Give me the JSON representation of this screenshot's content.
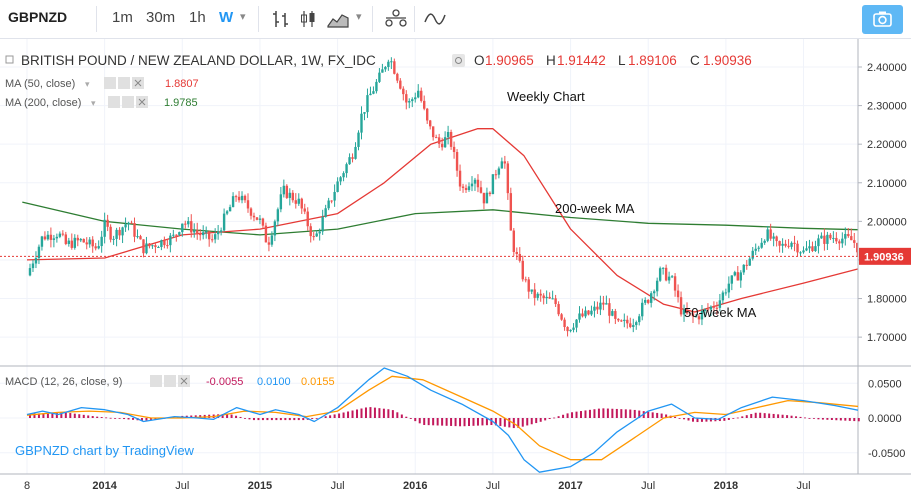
{
  "toolbar": {
    "symbol": "GBPNZD",
    "intervals": [
      "1m",
      "30m",
      "1h",
      "W"
    ],
    "active_interval": "W",
    "icons": [
      "bar-style-icon",
      "candle-style-icon",
      "area-style-icon",
      "chevron-down-icon",
      "compare-icon",
      "indicators-icon",
      "camera-icon"
    ]
  },
  "legend": {
    "title": "BRITISH POUND / NEW ZEALAND DOLLAR, 1W, FX_IDC",
    "o_label": "O",
    "o_value": "1.90965",
    "h_label": "H",
    "h_value": "1.91442",
    "l_label": "L",
    "l_value": "1.89106",
    "c_label": "C",
    "c_value": "1.90936",
    "ma50_label": "MA (50, close)",
    "ma50_value": "1.8807",
    "ma200_label": "MA (200, close)",
    "ma200_value": "1.9785",
    "macd_label": "MACD (12, 26, close, 9)",
    "macd_values": [
      "-0.0055",
      "0.0100",
      "0.0155"
    ]
  },
  "annotations": {
    "weekly": "Weekly Chart",
    "ma200": "200-week MA",
    "ma50": "50-week MA",
    "credit": "GBPNZD chart by TradingView"
  },
  "colors": {
    "up": "#26a69a",
    "down": "#ef5350",
    "ma50": "#e53935",
    "ma200": "#2e7d32",
    "macd": "#2196f3",
    "signal": "#ff9800",
    "hist": "#c2185b",
    "price_tag": "#e53935"
  },
  "chart_data": [
    {
      "type": "candlestick",
      "x_tick_labels": [
        "8",
        "2014",
        "Jul",
        "2015",
        "Jul",
        "2016",
        "Jul",
        "2017",
        "Jul",
        "2018",
        "Jul"
      ],
      "y_tick_labels": [
        "2.40000",
        "2.30000",
        "2.20000",
        "2.10000",
        "2.00000",
        "1.90000",
        "1.80000",
        "1.70000"
      ],
      "ylim": [
        1.63,
        2.46
      ],
      "last_price": "1.90936",
      "close_path": [
        {
          "t": 0.0,
          "v": 1.86
        },
        {
          "t": 0.1,
          "v": 1.96
        },
        {
          "t": 0.2,
          "v": 1.97
        },
        {
          "t": 0.25,
          "v": 1.94
        },
        {
          "t": 0.35,
          "v": 1.95
        },
        {
          "t": 0.45,
          "v": 1.93
        },
        {
          "t": 0.5,
          "v": 1.99
        },
        {
          "t": 0.55,
          "v": 1.96
        },
        {
          "t": 0.65,
          "v": 2.0
        },
        {
          "t": 0.75,
          "v": 1.93
        },
        {
          "t": 0.95,
          "v": 1.96
        },
        {
          "t": 1.0,
          "v": 2.0
        },
        {
          "t": 1.1,
          "v": 1.97
        },
        {
          "t": 1.2,
          "v": 1.95
        },
        {
          "t": 1.35,
          "v": 2.07
        },
        {
          "t": 1.5,
          "v": 2.0
        },
        {
          "t": 1.55,
          "v": 1.94
        },
        {
          "t": 1.65,
          "v": 2.08
        },
        {
          "t": 1.75,
          "v": 2.05
        },
        {
          "t": 1.85,
          "v": 1.95
        },
        {
          "t": 1.95,
          "v": 2.05
        },
        {
          "t": 2.0,
          "v": 2.1
        },
        {
          "t": 2.1,
          "v": 2.18
        },
        {
          "t": 2.15,
          "v": 2.27
        },
        {
          "t": 2.2,
          "v": 2.32
        },
        {
          "t": 2.28,
          "v": 2.38
        },
        {
          "t": 2.33,
          "v": 2.43
        },
        {
          "t": 2.4,
          "v": 2.36
        },
        {
          "t": 2.45,
          "v": 2.3
        },
        {
          "t": 2.52,
          "v": 2.34
        },
        {
          "t": 2.58,
          "v": 2.25
        },
        {
          "t": 2.65,
          "v": 2.2
        },
        {
          "t": 2.72,
          "v": 2.22
        },
        {
          "t": 2.8,
          "v": 2.08
        },
        {
          "t": 2.88,
          "v": 2.12
        },
        {
          "t": 2.95,
          "v": 2.05
        },
        {
          "t": 3.02,
          "v": 2.13
        },
        {
          "t": 3.07,
          "v": 2.18
        },
        {
          "t": 3.12,
          "v": 1.95
        },
        {
          "t": 3.2,
          "v": 1.85
        },
        {
          "t": 3.25,
          "v": 1.81
        },
        {
          "t": 3.32,
          "v": 1.8
        },
        {
          "t": 3.4,
          "v": 1.79
        },
        {
          "t": 3.48,
          "v": 1.72
        },
        {
          "t": 3.55,
          "v": 1.75
        },
        {
          "t": 3.62,
          "v": 1.76
        },
        {
          "t": 3.72,
          "v": 1.79
        },
        {
          "t": 3.8,
          "v": 1.73
        },
        {
          "t": 3.9,
          "v": 1.74
        },
        {
          "t": 4.0,
          "v": 1.8
        },
        {
          "t": 4.08,
          "v": 1.87
        },
        {
          "t": 4.15,
          "v": 1.85
        },
        {
          "t": 4.22,
          "v": 1.76
        },
        {
          "t": 4.3,
          "v": 1.75
        },
        {
          "t": 4.38,
          "v": 1.77
        },
        {
          "t": 4.45,
          "v": 1.79
        },
        {
          "t": 4.52,
          "v": 1.84
        },
        {
          "t": 4.6,
          "v": 1.87
        },
        {
          "t": 4.68,
          "v": 1.92
        },
        {
          "t": 4.76,
          "v": 1.97
        },
        {
          "t": 4.84,
          "v": 1.93
        },
        {
          "t": 4.92,
          "v": 1.95
        },
        {
          "t": 5.0,
          "v": 1.92
        },
        {
          "t": 5.1,
          "v": 1.95
        },
        {
          "t": 5.2,
          "v": 1.96
        },
        {
          "t": 5.32,
          "v": 1.95
        },
        {
          "t": 5.38,
          "v": 1.91
        }
      ],
      "ma50": [
        {
          "t": 0.0,
          "v": 1.9
        },
        {
          "t": 0.5,
          "v": 1.905
        },
        {
          "t": 1.0,
          "v": 1.965
        },
        {
          "t": 1.5,
          "v": 1.98
        },
        {
          "t": 2.0,
          "v": 2.02
        },
        {
          "t": 2.3,
          "v": 2.1
        },
        {
          "t": 2.6,
          "v": 2.2
        },
        {
          "t": 2.9,
          "v": 2.24
        },
        {
          "t": 3.0,
          "v": 2.24
        },
        {
          "t": 3.2,
          "v": 2.17
        },
        {
          "t": 3.5,
          "v": 1.98
        },
        {
          "t": 3.8,
          "v": 1.86
        },
        {
          "t": 4.1,
          "v": 1.785
        },
        {
          "t": 4.3,
          "v": 1.765
        },
        {
          "t": 4.6,
          "v": 1.8
        },
        {
          "t": 5.0,
          "v": 1.84
        },
        {
          "t": 5.38,
          "v": 1.88
        }
      ],
      "ma200": [
        {
          "t": -0.03,
          "v": 2.05
        },
        {
          "t": 0.5,
          "v": 2.0
        },
        {
          "t": 1.0,
          "v": 1.98
        },
        {
          "t": 1.5,
          "v": 1.965
        },
        {
          "t": 2.0,
          "v": 1.98
        },
        {
          "t": 2.5,
          "v": 2.02
        },
        {
          "t": 3.0,
          "v": 2.03
        },
        {
          "t": 3.5,
          "v": 2.01
        },
        {
          "t": 4.0,
          "v": 1.995
        },
        {
          "t": 4.5,
          "v": 1.99
        },
        {
          "t": 5.0,
          "v": 1.982
        },
        {
          "t": 5.38,
          "v": 1.978
        }
      ]
    },
    {
      "type": "macd",
      "y_tick_labels": [
        "0.0500",
        "0.0000",
        "-0.0500"
      ],
      "ylim": [
        -0.075,
        0.075
      ],
      "macd": [
        {
          "t": 0.0,
          "v": 0.005
        },
        {
          "t": 0.1,
          "v": 0.01
        },
        {
          "t": 0.2,
          "v": 0.005
        },
        {
          "t": 0.35,
          "v": 0.015
        },
        {
          "t": 0.5,
          "v": 0.012
        },
        {
          "t": 0.65,
          "v": 0.005
        },
        {
          "t": 0.75,
          "v": -0.005
        },
        {
          "t": 0.95,
          "v": 0.002
        },
        {
          "t": 1.1,
          "v": 0.0
        },
        {
          "t": 1.2,
          "v": -0.002
        },
        {
          "t": 1.35,
          "v": 0.015
        },
        {
          "t": 1.5,
          "v": 0.005
        },
        {
          "t": 1.6,
          "v": 0.012
        },
        {
          "t": 1.75,
          "v": 0.005
        },
        {
          "t": 1.85,
          "v": -0.005
        },
        {
          "t": 2.0,
          "v": 0.015
        },
        {
          "t": 2.2,
          "v": 0.055
        },
        {
          "t": 2.3,
          "v": 0.072
        },
        {
          "t": 2.45,
          "v": 0.06
        },
        {
          "t": 2.6,
          "v": 0.04
        },
        {
          "t": 2.8,
          "v": 0.02
        },
        {
          "t": 3.0,
          "v": -0.005
        },
        {
          "t": 3.1,
          "v": -0.025
        },
        {
          "t": 3.2,
          "v": -0.06
        },
        {
          "t": 3.3,
          "v": -0.078
        },
        {
          "t": 3.5,
          "v": -0.07
        },
        {
          "t": 3.65,
          "v": -0.05
        },
        {
          "t": 3.8,
          "v": -0.02
        },
        {
          "t": 4.0,
          "v": 0.01
        },
        {
          "t": 4.15,
          "v": 0.02
        },
        {
          "t": 4.3,
          "v": 0.0
        },
        {
          "t": 4.45,
          "v": -0.002
        },
        {
          "t": 4.6,
          "v": 0.015
        },
        {
          "t": 4.8,
          "v": 0.03
        },
        {
          "t": 5.0,
          "v": 0.025
        },
        {
          "t": 5.2,
          "v": 0.018
        },
        {
          "t": 5.38,
          "v": 0.01
        }
      ],
      "signal": [
        {
          "t": 0.0,
          "v": 0.004
        },
        {
          "t": 0.2,
          "v": 0.008
        },
        {
          "t": 0.4,
          "v": 0.01
        },
        {
          "t": 0.6,
          "v": 0.008
        },
        {
          "t": 0.8,
          "v": 0.0
        },
        {
          "t": 1.0,
          "v": 0.0
        },
        {
          "t": 1.2,
          "v": 0.002
        },
        {
          "t": 1.4,
          "v": 0.01
        },
        {
          "t": 1.6,
          "v": 0.008
        },
        {
          "t": 1.8,
          "v": 0.002
        },
        {
          "t": 2.0,
          "v": 0.01
        },
        {
          "t": 2.2,
          "v": 0.04
        },
        {
          "t": 2.35,
          "v": 0.06
        },
        {
          "t": 2.55,
          "v": 0.055
        },
        {
          "t": 2.8,
          "v": 0.03
        },
        {
          "t": 3.0,
          "v": 0.01
        },
        {
          "t": 3.15,
          "v": -0.01
        },
        {
          "t": 3.3,
          "v": -0.04
        },
        {
          "t": 3.5,
          "v": -0.06
        },
        {
          "t": 3.7,
          "v": -0.06
        },
        {
          "t": 3.9,
          "v": -0.03
        },
        {
          "t": 4.1,
          "v": 0.0
        },
        {
          "t": 4.3,
          "v": 0.008
        },
        {
          "t": 4.5,
          "v": 0.005
        },
        {
          "t": 4.7,
          "v": 0.015
        },
        {
          "t": 4.9,
          "v": 0.025
        },
        {
          "t": 5.1,
          "v": 0.022
        },
        {
          "t": 5.38,
          "v": 0.016
        }
      ],
      "histogram": [
        {
          "t": 0.0,
          "v": 0.006
        },
        {
          "t": 0.25,
          "v": 0.008
        },
        {
          "t": 0.45,
          "v": 0.002
        },
        {
          "t": 0.75,
          "v": -0.004
        },
        {
          "t": 1.0,
          "v": 0.003
        },
        {
          "t": 1.3,
          "v": 0.006
        },
        {
          "t": 1.45,
          "v": -0.003
        },
        {
          "t": 1.8,
          "v": -0.003
        },
        {
          "t": 2.0,
          "v": 0.006
        },
        {
          "t": 2.2,
          "v": 0.016
        },
        {
          "t": 2.35,
          "v": 0.012
        },
        {
          "t": 2.55,
          "v": -0.01
        },
        {
          "t": 2.8,
          "v": -0.012
        },
        {
          "t": 3.0,
          "v": -0.01
        },
        {
          "t": 3.15,
          "v": -0.015
        },
        {
          "t": 3.3,
          "v": -0.006
        },
        {
          "t": 3.5,
          "v": 0.008
        },
        {
          "t": 3.7,
          "v": 0.014
        },
        {
          "t": 3.9,
          "v": 0.012
        },
        {
          "t": 4.1,
          "v": 0.006
        },
        {
          "t": 4.3,
          "v": -0.006
        },
        {
          "t": 4.5,
          "v": -0.004
        },
        {
          "t": 4.7,
          "v": 0.008
        },
        {
          "t": 4.9,
          "v": 0.004
        },
        {
          "t": 5.1,
          "v": -0.002
        },
        {
          "t": 5.38,
          "v": -0.005
        }
      ]
    }
  ]
}
